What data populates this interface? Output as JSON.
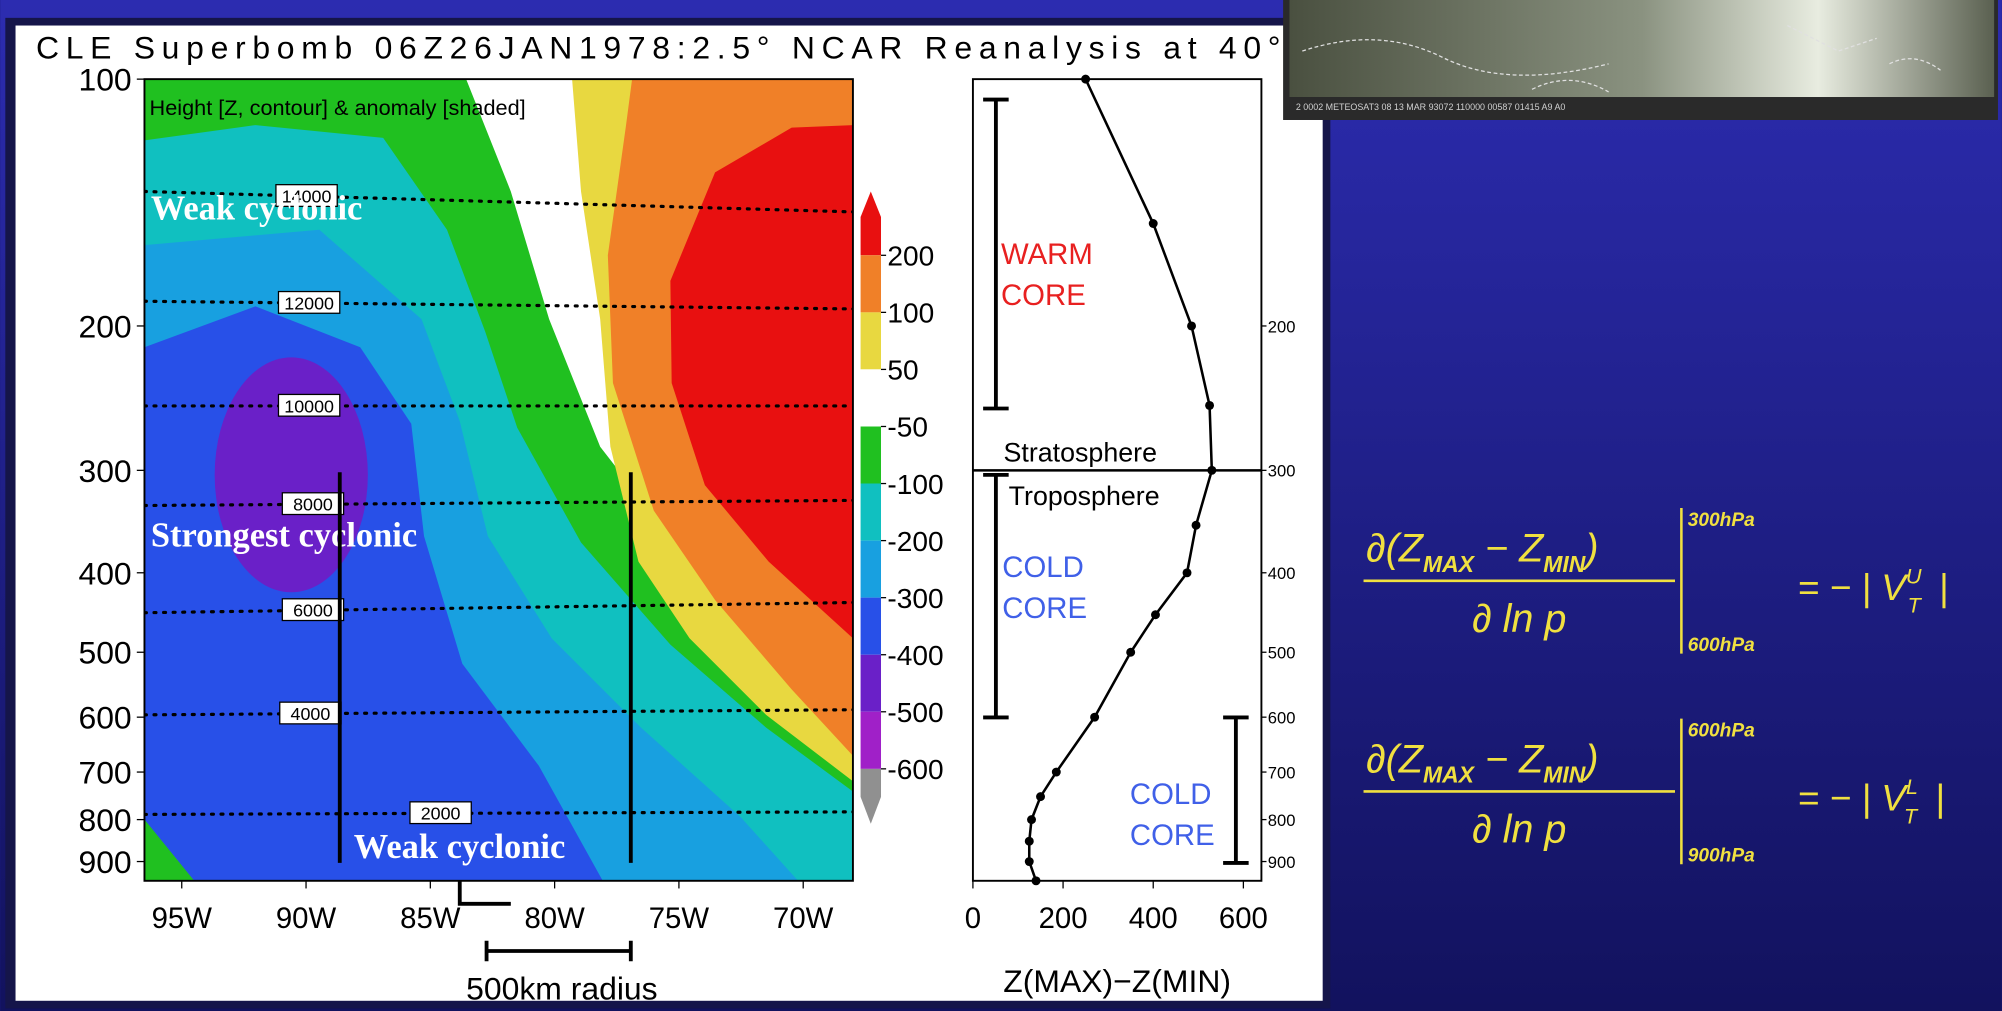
{
  "chart_data": [
    {
      "type": "contour",
      "title": "CLE Superbomb 06Z26JAN1978:2.5° NCAR Reanalysis at 40°",
      "subtitle": "Height [Z, contour] & anomaly [shaded]",
      "xlim": [
        -96.5,
        -68
      ],
      "xticks": [
        {
          "value": -95,
          "label": "95W"
        },
        {
          "value": -90,
          "label": "90W"
        },
        {
          "value": -85,
          "label": "85W"
        },
        {
          "value": -80,
          "label": "80W"
        },
        {
          "value": -75,
          "label": "75W"
        },
        {
          "value": -70,
          "label": "70W"
        }
      ],
      "ylim": [
        100,
        950
      ],
      "yticks": [
        100,
        200,
        300,
        400,
        500,
        600,
        700,
        800,
        900
      ],
      "log_y": true,
      "contour_levels": [
        14000,
        12000,
        10000,
        8000,
        6000,
        4000,
        2000
      ],
      "annotations": [
        "Weak cyclonic",
        "Strongest cyclonic",
        "Weak cyclonic"
      ],
      "scale_label": "500km radius",
      "colorbar": {
        "levels": [
          200,
          100,
          50,
          -50,
          -100,
          -200,
          -300,
          -400,
          -500,
          -600
        ],
        "colors": [
          "#e81010",
          "#f08028",
          "#e8d840",
          "#ffffff",
          "#20c020",
          "#10c0c0",
          "#18a0e0",
          "#2850e8",
          "#6a20c8",
          "#a020c8",
          "#909090"
        ]
      }
    },
    {
      "type": "line",
      "xlabel": "Z(MAX)−Z(MIN)",
      "xlim": [
        0,
        640
      ],
      "xticks": [
        0,
        200,
        400,
        600
      ],
      "ylim": [
        100,
        950
      ],
      "yticks": [
        200,
        300,
        400,
        500,
        600,
        700,
        800,
        900
      ],
      "log_y": true,
      "y": [
        100,
        150,
        200,
        250,
        300,
        350,
        400,
        450,
        500,
        600,
        700,
        750,
        800,
        850,
        900,
        950
      ],
      "values": [
        250,
        400,
        485,
        525,
        530,
        495,
        475,
        405,
        350,
        270,
        185,
        150,
        130,
        125,
        125,
        140
      ],
      "color": "#000000",
      "tropopause": 300,
      "warm_core": [
        "WARM",
        "CORE"
      ],
      "upper_layer": "Stratosphere",
      "lower_layer": "Troposphere",
      "cold_core_upper": [
        "COLD",
        "CORE"
      ],
      "cold_core_lower": [
        "COLD",
        "CORE"
      ]
    }
  ],
  "satellite_caption": "2  0002  METEOSAT3 08 13 MAR 93072 110000 00587 01415 A9 A0",
  "equations": [
    {
      "numerator": [
        "∂(Z",
        "MAX",
        " − Z",
        "MIN",
        ")"
      ],
      "denominator": "∂ ln p",
      "upper": "300hPa",
      "lower": "600hPa",
      "rhs": "= − | V",
      "superscript": "U",
      "subscript": "T",
      "close": "|"
    },
    {
      "numerator": [
        "∂(Z",
        "MAX",
        " − Z",
        "MIN",
        ")"
      ],
      "denominator": "∂ ln p",
      "upper": "600hPa",
      "lower": "900hPa",
      "rhs": "= − | V",
      "superscript": "L",
      "subscript": "T",
      "close": "|"
    }
  ]
}
